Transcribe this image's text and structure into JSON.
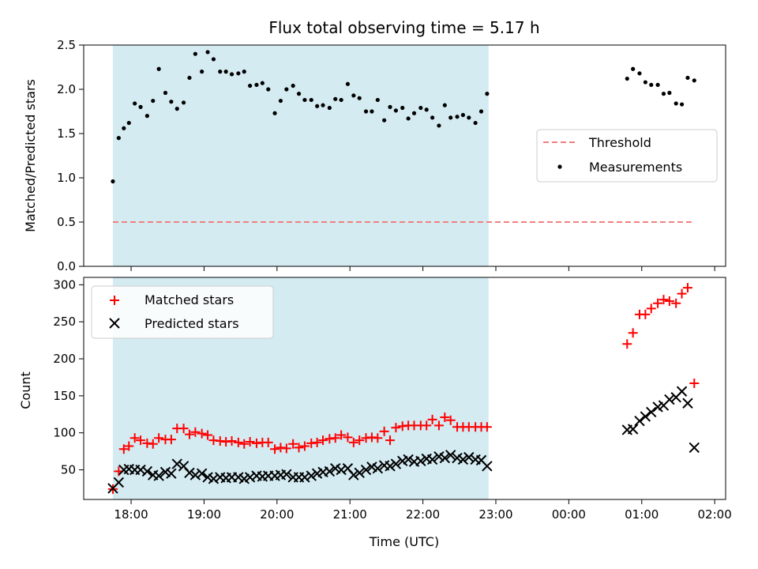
{
  "chart_data": {
    "type": "scatter",
    "title": "Flux total observing time = 5.17 h",
    "xlabel": "Time (UTC)",
    "x_ticks": [
      "18:00",
      "19:00",
      "20:00",
      "21:00",
      "22:00",
      "23:00",
      "00:00",
      "01:00",
      "02:00"
    ],
    "x_range_hours": [
      17.35,
      26.15
    ],
    "shaded_interval_hours": [
      17.75,
      22.9
    ],
    "shade_color": "#d4ebf2",
    "panels": [
      {
        "ylabel": "Matched/Predicted stars",
        "ylim": [
          0,
          2.5
        ],
        "y_ticks": [
          "0.0",
          "0.5",
          "1.0",
          "1.5",
          "2.0",
          "2.5"
        ],
        "legend_position": "center-right",
        "series": [
          {
            "name": "Threshold",
            "kind": "line",
            "style": "dashed",
            "color": "#f08080",
            "x_hours": [
              17.75,
              25.7
            ],
            "values": [
              0.5,
              0.5
            ]
          },
          {
            "name": "Measurements",
            "kind": "scatter",
            "marker": "dot",
            "color": "#000000",
            "x_hours": [
              17.75,
              17.83,
              17.9,
              17.97,
              18.05,
              18.13,
              18.22,
              18.3,
              18.38,
              18.47,
              18.55,
              18.63,
              18.72,
              18.8,
              18.88,
              18.97,
              19.05,
              19.13,
              19.22,
              19.3,
              19.38,
              19.47,
              19.55,
              19.63,
              19.72,
              19.8,
              19.88,
              19.97,
              20.05,
              20.13,
              20.22,
              20.3,
              20.38,
              20.47,
              20.55,
              20.63,
              20.72,
              20.8,
              20.88,
              20.97,
              21.05,
              21.13,
              21.22,
              21.3,
              21.38,
              21.47,
              21.55,
              21.63,
              21.72,
              21.8,
              21.88,
              21.97,
              22.05,
              22.13,
              22.22,
              22.3,
              22.38,
              22.47,
              22.55,
              22.63,
              22.72,
              22.8,
              22.88,
              24.8,
              24.88,
              24.97,
              25.05,
              25.13,
              25.22,
              25.3,
              25.38,
              25.47,
              25.55,
              25.63,
              25.72
            ],
            "values": [
              0.96,
              1.45,
              1.56,
              1.62,
              1.84,
              1.8,
              1.7,
              1.87,
              2.23,
              1.96,
              1.86,
              1.78,
              1.85,
              2.13,
              2.4,
              2.2,
              2.42,
              2.34,
              2.2,
              2.2,
              2.17,
              2.18,
              2.2,
              2.04,
              2.05,
              2.07,
              2.0,
              1.73,
              1.87,
              2.0,
              2.04,
              1.95,
              1.88,
              1.88,
              1.81,
              1.82,
              1.79,
              1.89,
              1.88,
              2.06,
              1.93,
              1.9,
              1.75,
              1.75,
              1.88,
              1.65,
              1.8,
              1.76,
              1.79,
              1.67,
              1.73,
              1.79,
              1.77,
              1.68,
              1.59,
              1.82,
              1.68,
              1.69,
              1.71,
              1.68,
              1.62,
              1.75,
              1.95,
              2.12,
              2.23,
              2.18,
              2.08,
              2.05,
              2.05,
              1.95,
              1.96,
              1.84,
              1.83,
              2.13,
              2.1
            ]
          }
        ]
      },
      {
        "ylabel": "Count",
        "ylim": [
          10,
          310
        ],
        "y_ticks": [
          "50",
          "100",
          "150",
          "200",
          "250",
          "300"
        ],
        "legend_position": "upper-left",
        "series": [
          {
            "name": "Matched stars",
            "kind": "scatter",
            "marker": "plus",
            "color": "#ff0000",
            "x_hours": [
              17.75,
              17.83,
              17.9,
              17.97,
              18.05,
              18.13,
              18.22,
              18.3,
              18.38,
              18.47,
              18.55,
              18.63,
              18.72,
              18.8,
              18.88,
              18.97,
              19.05,
              19.13,
              19.22,
              19.3,
              19.38,
              19.47,
              19.55,
              19.63,
              19.72,
              19.8,
              19.88,
              19.97,
              20.05,
              20.13,
              20.22,
              20.3,
              20.38,
              20.47,
              20.55,
              20.63,
              20.72,
              20.8,
              20.88,
              20.97,
              21.05,
              21.13,
              21.22,
              21.3,
              21.38,
              21.47,
              21.55,
              21.63,
              21.72,
              21.8,
              21.88,
              21.97,
              22.05,
              22.13,
              22.22,
              22.3,
              22.38,
              22.47,
              22.55,
              22.63,
              22.72,
              22.8,
              22.88,
              24.8,
              24.88,
              24.97,
              25.05,
              25.13,
              25.22,
              25.3,
              25.38,
              25.47,
              25.55,
              25.63,
              25.72
            ],
            "values": [
              24,
              48,
              78,
              82,
              93,
              90,
              86,
              85,
              93,
              91,
              91,
              106,
              106,
              98,
              101,
              99,
              97,
              90,
              89,
              88,
              89,
              87,
              85,
              88,
              86,
              87,
              87,
              78,
              80,
              79,
              85,
              80,
              82,
              86,
              87,
              90,
              92,
              93,
              97,
              94,
              87,
              90,
              93,
              94,
              93,
              102,
              90,
              107,
              109,
              110,
              110,
              110,
              110,
              118,
              110,
              121,
              117,
              108,
              108,
              108,
              108,
              108,
              108,
              220,
              235,
              260,
              260,
              268,
              275,
              280,
              278,
              275,
              288,
              296,
              167
            ]
          },
          {
            "name": "Predicted stars",
            "kind": "scatter",
            "marker": "x",
            "color": "#000000",
            "x_hours": [
              17.75,
              17.83,
              17.9,
              17.97,
              18.05,
              18.13,
              18.22,
              18.3,
              18.38,
              18.47,
              18.55,
              18.63,
              18.72,
              18.8,
              18.88,
              18.97,
              19.05,
              19.13,
              19.22,
              19.3,
              19.38,
              19.47,
              19.55,
              19.63,
              19.72,
              19.8,
              19.88,
              19.97,
              20.05,
              20.13,
              20.22,
              20.3,
              20.38,
              20.47,
              20.55,
              20.63,
              20.72,
              20.8,
              20.88,
              20.97,
              21.05,
              21.13,
              21.22,
              21.3,
              21.38,
              21.47,
              21.55,
              21.63,
              21.72,
              21.8,
              21.88,
              21.97,
              22.05,
              22.13,
              22.22,
              22.3,
              22.38,
              22.47,
              22.55,
              22.63,
              22.72,
              22.8,
              22.88,
              24.8,
              24.88,
              24.97,
              25.05,
              25.13,
              25.22,
              25.3,
              25.38,
              25.47,
              25.55,
              25.63,
              25.72
            ],
            "values": [
              25,
              33,
              50,
              51,
              50,
              50,
              48,
              43,
              42,
              47,
              45,
              58,
              55,
              46,
              43,
              45,
              40,
              38,
              40,
              39,
              40,
              40,
              38,
              40,
              42,
              41,
              42,
              42,
              43,
              44,
              40,
              40,
              40,
              42,
              45,
              47,
              48,
              52,
              50,
              52,
              43,
              46,
              50,
              54,
              52,
              56,
              55,
              58,
              62,
              64,
              61,
              62,
              65,
              64,
              68,
              66,
              70,
              66,
              64,
              67,
              64,
              63,
              55,
              104,
              105,
              116,
              122,
              128,
              135,
              137,
              145,
              148,
              156,
              140,
              80
            ]
          }
        ]
      }
    ]
  }
}
